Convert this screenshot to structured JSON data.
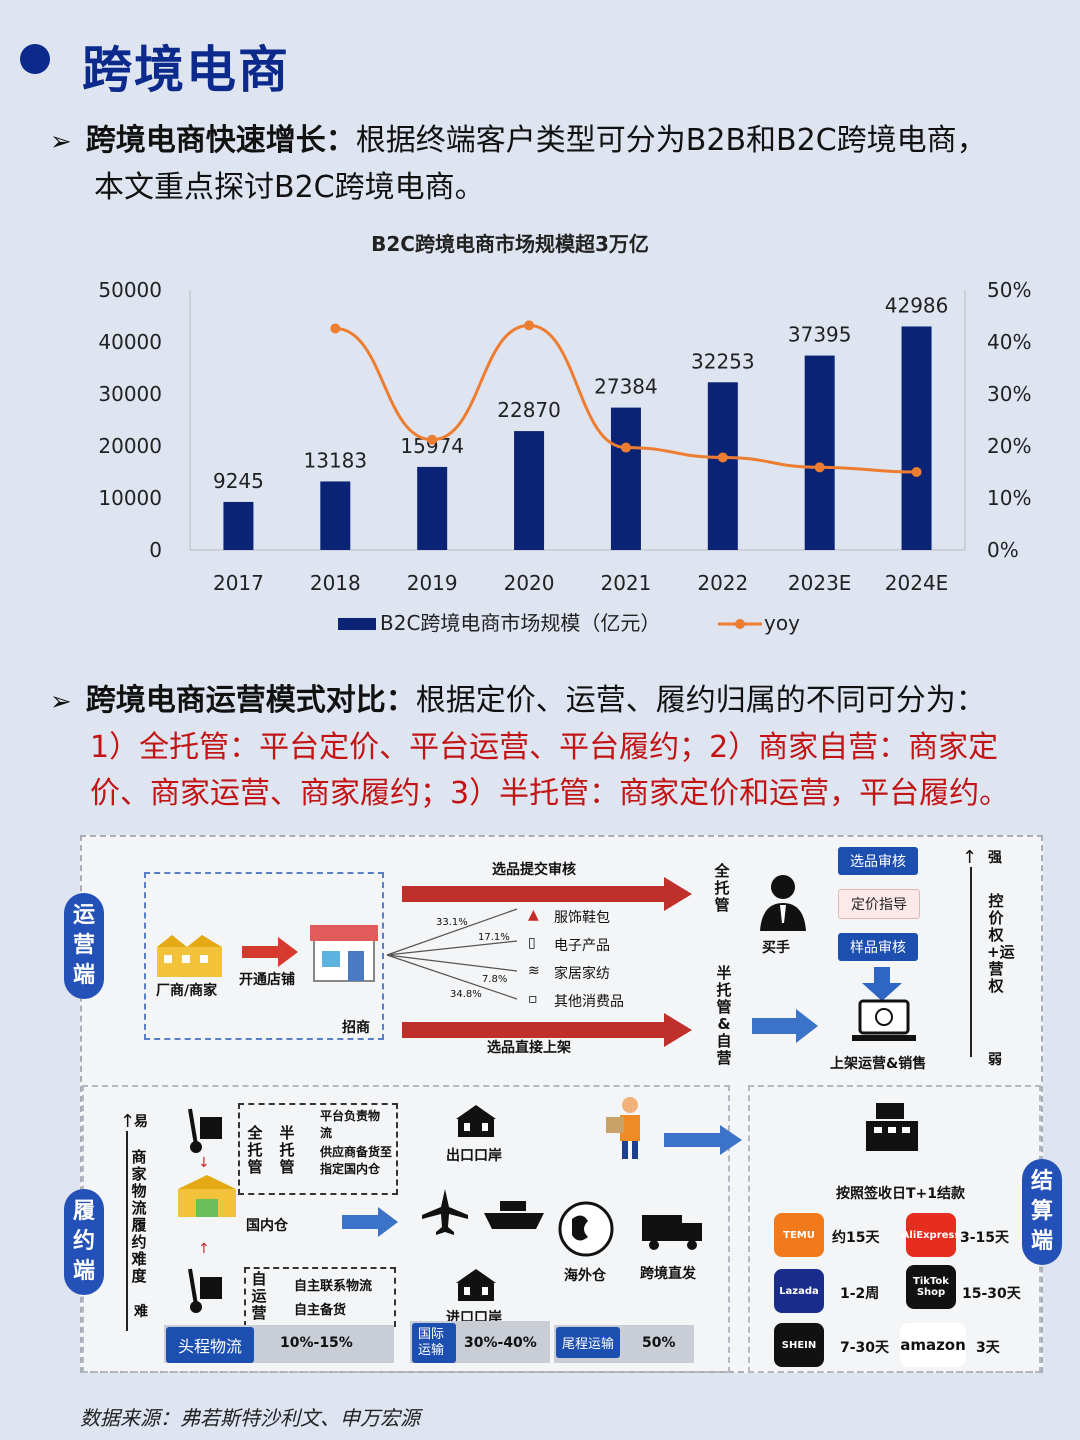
{
  "page": {
    "title": "跨境电商",
    "source": "数据来源：弗若斯特沙利文、申万宏源"
  },
  "bullet1": {
    "bold": "跨境电商快速增长：",
    "text": "根据终端客户类型可分为B2B和B2C跨境电商，",
    "line2": "本文重点探讨B2C跨境电商。"
  },
  "bullet2": {
    "bold": "跨境电商运营模式对比：",
    "text": "根据定价、运营、履约归属的不同可分为：",
    "red1": "1）全托管：平台定价、平台运营、平台履约；2）商家自营：商家定",
    "red2": "价、商家运营、商家履约；3）半托管：商家定价和运营，平台履约。"
  },
  "chart_data": {
    "type": "bar",
    "title": "B2C跨境电商市场规模超3万亿",
    "categories": [
      "2017",
      "2018",
      "2019",
      "2020",
      "2021",
      "2022",
      "2023E",
      "2024E"
    ],
    "series": [
      {
        "name": "B2C跨境电商市场规模（亿元）",
        "type": "bar",
        "axis": "left",
        "values": [
          9245,
          13183,
          15974,
          22870,
          27384,
          32253,
          37395,
          42986
        ],
        "labels": [
          "9245",
          "13183",
          "15974",
          "22870",
          "27384",
          "32253",
          "37395",
          "42986"
        ]
      },
      {
        "name": "yoy",
        "type": "line",
        "axis": "right",
        "values": [
          null,
          0.426,
          0.212,
          0.432,
          0.197,
          0.178,
          0.159,
          0.15
        ]
      }
    ],
    "y_left": {
      "min": 0,
      "max": 50000,
      "ticks": [
        "0",
        "10000",
        "20000",
        "30000",
        "40000",
        "50000"
      ]
    },
    "y_right": {
      "min": 0,
      "max": 0.5,
      "ticks": [
        "0%",
        "10%",
        "20%",
        "30%",
        "40%",
        "50%"
      ]
    },
    "grid": false,
    "legend": "bottom",
    "colors": {
      "bar": "#0b2375",
      "line": "#ed7d31"
    }
  },
  "diagram": {
    "ops_tag": "运营端",
    "fulfill_tag": "履约端",
    "settle_tag": "结算端",
    "merchant": "厂商/商家",
    "open_store": "开通店铺",
    "recruit": "招商",
    "top_flow": "选品提交审核",
    "bottom_flow": "选品直接上架",
    "full_custody": "全托管",
    "semi_self": "半托管&自营",
    "buyer": "买手",
    "categories": [
      {
        "pct": "33.1%",
        "name": "服饰鞋包"
      },
      {
        "pct": "17.1%",
        "name": "电子产品"
      },
      {
        "pct": "7.8%",
        "name": "家居家纺"
      },
      {
        "pct": "34.8%",
        "name": "其他消费品"
      }
    ],
    "review": [
      "选品审核",
      "定价指导",
      "样品审核"
    ],
    "listing": "上架运营&销售",
    "control": {
      "strong": "强",
      "label": "控价权+运营权",
      "weak": "弱"
    },
    "difficulty": {
      "easy": "易",
      "label": "商家物流履约难度",
      "hard": "难"
    },
    "full_semi": [
      "全托管",
      "半托管"
    ],
    "platform_resp": [
      "平台负责物流",
      "供应商备货至指定国内仓"
    ],
    "self_op": "自运营",
    "self_items": [
      "自主联系物流",
      "自主备货"
    ],
    "domestic_wh": "国内仓",
    "export_port": "出口口岸",
    "import_port": "进口口岸",
    "overseas_wh": "海外仓",
    "cross_direct": "跨境直发",
    "settle_title": "按照签收日T+1结款",
    "platforms": [
      {
        "name": "TEMU",
        "days": "约15天",
        "color": "#f27a1a"
      },
      {
        "name": "AliExpress",
        "days": "3-15天",
        "color": "#e62e1e"
      },
      {
        "name": "Lazada",
        "days": "1-2周",
        "color": "#1a2d8c"
      },
      {
        "name": "TikTok Shop",
        "days": "15-30天",
        "color": "#111111"
      },
      {
        "name": "SHEIN",
        "days": "7-30天",
        "color": "#111111"
      },
      {
        "name": "amazon",
        "days": "3天",
        "color": "#ffffff"
      }
    ],
    "bottom_bar": [
      {
        "label": "头程物流",
        "pct": "10%-15%"
      },
      {
        "label": "国际运输",
        "pct": "30%-40%"
      },
      {
        "label": "尾程运输",
        "pct": "50%"
      }
    ]
  }
}
